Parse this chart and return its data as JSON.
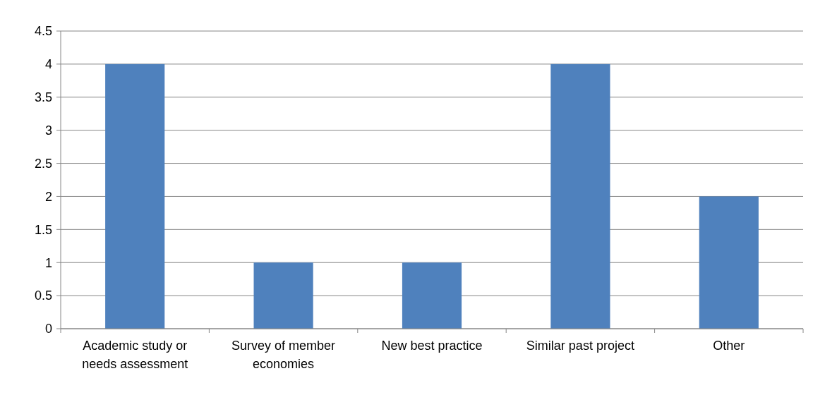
{
  "chart_data": {
    "type": "bar",
    "categories": [
      "Academic study or needs assessment",
      "Survey of member economies",
      "New best practice",
      "Similar past project",
      "Other"
    ],
    "values": [
      4,
      1,
      1,
      4,
      2
    ],
    "color": "#4f81bd",
    "ylim": [
      0,
      4.5
    ],
    "yticks": [
      0,
      0.5,
      1,
      1.5,
      2,
      2.5,
      3,
      3.5,
      4,
      4.5
    ],
    "grid": "y"
  }
}
